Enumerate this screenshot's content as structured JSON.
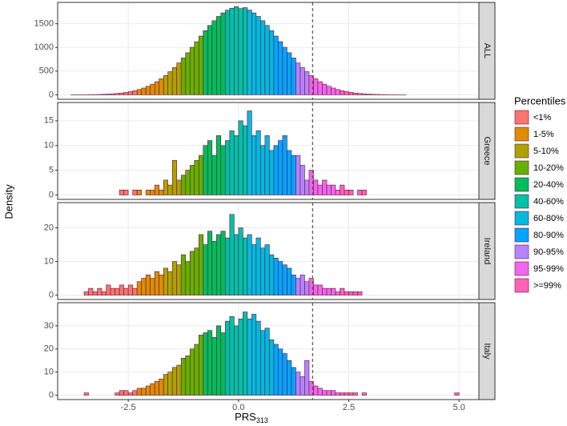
{
  "chart_data": {
    "type": "histogram",
    "y_label": "Density",
    "x_label": "PRS",
    "x_label_sub": "313",
    "xlim": [
      -4.1,
      5.45
    ],
    "xticks": [
      -2.5,
      {
        "value": 0,
        "label": "0.0"
      },
      2.5,
      {
        "value": 5,
        "label": "5.0"
      }
    ],
    "vline": 1.68,
    "bins": [
      -4.0,
      -3.9,
      -3.8,
      -3.7,
      -3.6,
      -3.5,
      -3.4,
      -3.3,
      -3.2,
      -3.1,
      -3.0,
      -2.9,
      -2.8,
      -2.7,
      -2.6,
      -2.5,
      -2.4,
      -2.3,
      -2.2,
      -2.1,
      -2.0,
      -1.9,
      -1.8,
      -1.7,
      -1.6,
      -1.5,
      -1.4,
      -1.3,
      -1.2,
      -1.1,
      -1.0,
      -0.9,
      -0.8,
      -0.7,
      -0.6,
      -0.5,
      -0.4,
      -0.3,
      -0.2,
      -0.1,
      0.0,
      0.1,
      0.2,
      0.3,
      0.4,
      0.5,
      0.6,
      0.7,
      0.8,
      0.9,
      1.0,
      1.1,
      1.2,
      1.3,
      1.4,
      1.5,
      1.6,
      1.7,
      1.8,
      1.9,
      2.0,
      2.1,
      2.2,
      2.3,
      2.4,
      2.5,
      2.6,
      2.7,
      2.8,
      2.9,
      3.0,
      3.1,
      3.2,
      3.3,
      3.4,
      3.5,
      3.6,
      3.7,
      3.8,
      3.9,
      4.0,
      4.1,
      4.2,
      4.3,
      4.4,
      4.5,
      4.6,
      4.7,
      4.8,
      4.9,
      5.0
    ],
    "legend": {
      "title": "Percentiles",
      "items": [
        "<1%",
        "1-5%",
        "5-10%",
        "10-20%",
        "20-40%",
        "40-60%",
        "60-80%",
        "80-90%",
        "90-95%",
        "95-99%",
        ">=99%"
      ],
      "colors": [
        "#F8766D",
        "#DB8E00",
        "#AEA200",
        "#64B200",
        "#00BD5C",
        "#00C1A7",
        "#00BADE",
        "#00A6FF",
        "#B385FF",
        "#EF67EB",
        "#FF63B6"
      ],
      "breaks": [
        -2.3,
        -1.65,
        -1.3,
        -0.85,
        -0.25,
        0.25,
        0.85,
        1.3,
        1.65,
        2.3
      ]
    },
    "panels": [
      {
        "name": "ALL",
        "ylim": [
          -95,
          1950
        ],
        "yticks": [
          0,
          500,
          1000,
          1500
        ],
        "counts": [
          0,
          0,
          1,
          1,
          2,
          2,
          4,
          5,
          7,
          10,
          15,
          20,
          28,
          37,
          50,
          66,
          86,
          111,
          142,
          180,
          224,
          277,
          338,
          408,
          487,
          575,
          672,
          777,
          888,
          1003,
          1121,
          1240,
          1354,
          1463,
          1564,
          1654,
          1728,
          1787,
          1827,
          1860,
          1820,
          1840,
          1787,
          1728,
          1654,
          1564,
          1463,
          1354,
          1240,
          1121,
          1003,
          888,
          777,
          672,
          575,
          487,
          408,
          338,
          277,
          224,
          180,
          142,
          111,
          86,
          66,
          50,
          37,
          28,
          20,
          15,
          10,
          7,
          5,
          4,
          2,
          2,
          1,
          1,
          0,
          0,
          0,
          0,
          0,
          0,
          0,
          0,
          0,
          0,
          0,
          0
        ]
      },
      {
        "name": "Greece",
        "ylim": [
          -0.9,
          18.7
        ],
        "yticks": [
          0,
          5,
          10,
          15
        ],
        "counts": [
          0,
          0,
          0,
          0,
          0,
          0,
          0,
          0,
          0,
          0,
          0,
          0,
          0,
          1,
          1,
          0,
          1,
          1,
          0,
          1,
          1,
          2,
          1,
          3,
          2,
          7,
          3,
          4,
          5,
          6,
          7,
          8,
          10,
          11,
          8,
          12,
          10,
          11,
          13,
          12,
          15,
          14,
          17,
          12,
          13,
          10,
          12,
          9,
          10,
          11,
          12,
          9,
          8,
          8,
          6,
          3,
          5,
          3,
          2,
          3,
          2,
          2,
          1,
          2,
          1,
          1,
          0,
          1,
          1,
          0,
          0,
          0,
          0,
          0,
          0,
          0,
          0,
          0,
          0,
          0,
          0,
          0,
          0,
          0,
          0,
          0,
          0,
          0,
          0,
          0
        ]
      },
      {
        "name": "Ireland",
        "ylim": [
          -1.3,
          27.5
        ],
        "yticks": [
          0,
          10,
          20
        ],
        "counts": [
          0,
          0,
          0,
          0,
          0,
          1,
          2,
          1,
          2,
          1,
          3,
          2,
          2,
          3,
          2,
          3,
          2,
          4,
          5,
          6,
          5,
          7,
          6,
          8,
          7,
          10,
          9,
          12,
          10,
          13,
          14,
          18,
          15,
          19,
          16,
          18,
          19,
          17,
          24,
          18,
          20,
          17,
          18,
          15,
          17,
          14,
          15,
          12,
          11,
          10,
          9,
          8,
          6,
          5,
          6,
          4,
          5,
          3,
          3,
          2,
          2,
          2,
          1,
          2,
          1,
          1,
          1,
          1,
          0,
          0,
          0,
          0,
          0,
          0,
          0,
          0,
          0,
          0,
          0,
          0,
          0,
          0,
          0,
          0,
          0,
          0,
          0,
          0,
          0,
          0
        ]
      },
      {
        "name": "Italy",
        "ylim": [
          -1.9,
          40
        ],
        "yticks": [
          0,
          10,
          20,
          30
        ],
        "counts": [
          0,
          0,
          0,
          0,
          0,
          1,
          0,
          0,
          0,
          0,
          0,
          0,
          1,
          2,
          2,
          1,
          2,
          3,
          3,
          4,
          5,
          6,
          7,
          9,
          10,
          12,
          13,
          16,
          17,
          20,
          22,
          26,
          27,
          28,
          25,
          30,
          27,
          32,
          34,
          30,
          33,
          36,
          33,
          35,
          32,
          28,
          29,
          24,
          22,
          20,
          18,
          15,
          12,
          10,
          8,
          15,
          6,
          4,
          3,
          2,
          2,
          2,
          1,
          1,
          1,
          1,
          1,
          0,
          1,
          0,
          0,
          0,
          0,
          0,
          0,
          0,
          0,
          0,
          0,
          0,
          0,
          0,
          0,
          0,
          0,
          0,
          0,
          0,
          0,
          1
        ]
      }
    ]
  }
}
